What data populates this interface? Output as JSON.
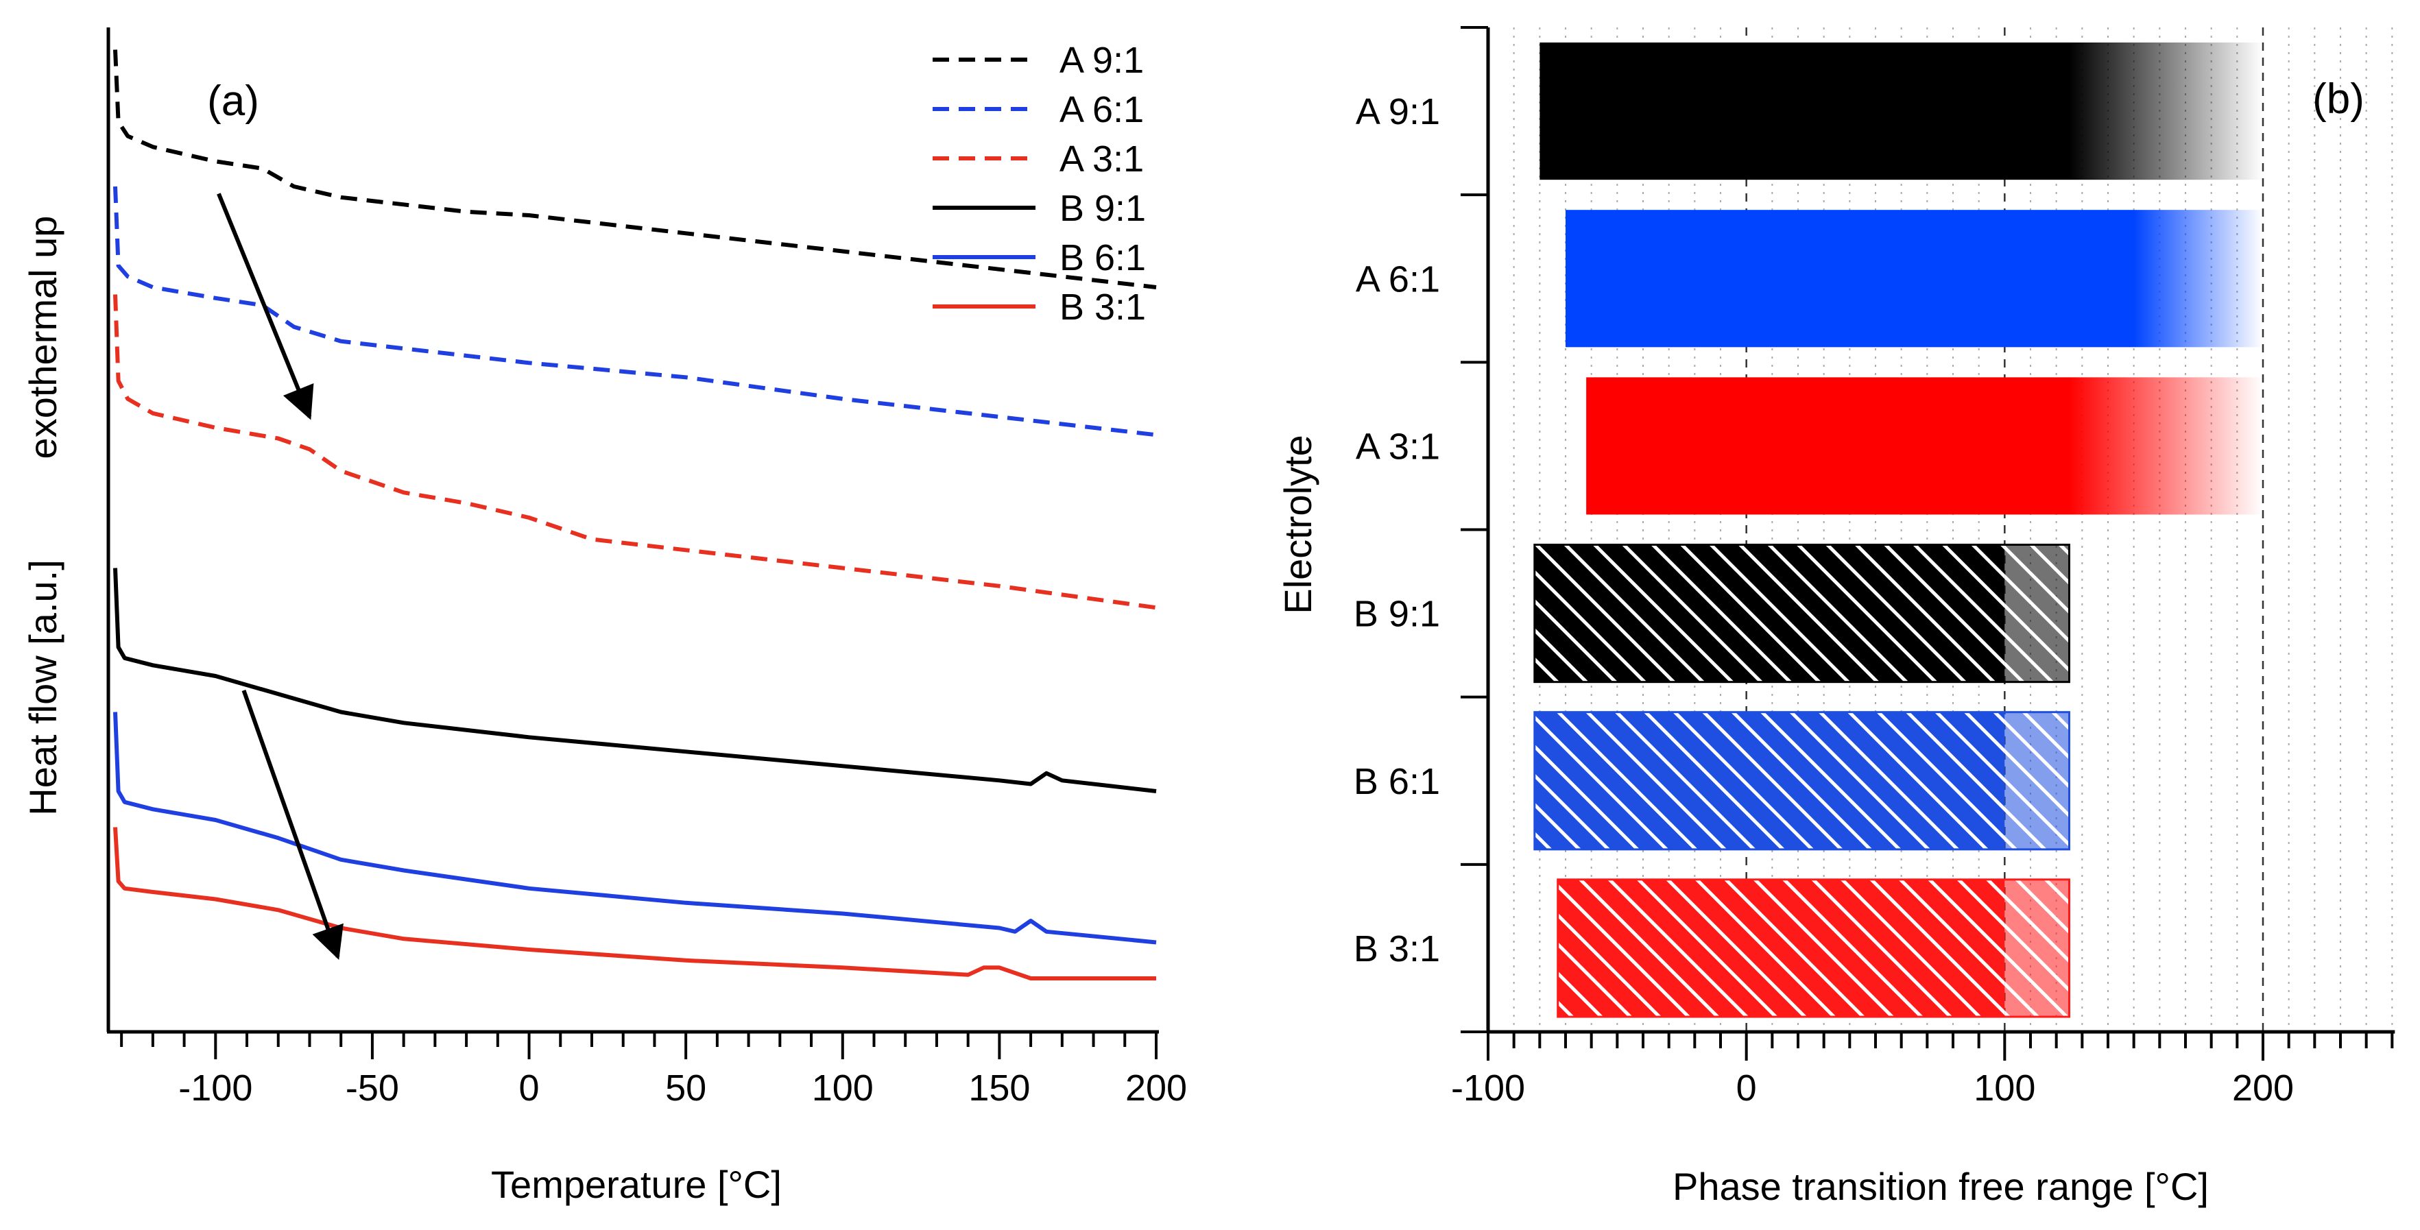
{
  "chart_data": [
    {
      "panel": "(a)",
      "type": "line",
      "xlabel": "Temperature [°C]",
      "ylabel_lines": [
        "Heat flow [a.u.]",
        "exothermal up"
      ],
      "xlim": [
        -135,
        200
      ],
      "xticks": [
        -100,
        -50,
        0,
        50,
        100,
        150,
        200
      ],
      "xtick_labels": [
        "-100",
        "-50",
        "0",
        "50",
        "100",
        "150",
        "200"
      ],
      "yaxis_ticks": false,
      "legend": {
        "position": "top-right"
      },
      "series": [
        {
          "name": "A 9:1",
          "color": "#000000",
          "style": "dashed",
          "x": [
            -132,
            -131,
            -128,
            -120,
            -100,
            -85,
            -75,
            -60,
            -40,
            -20,
            0,
            50,
            100,
            150,
            200
          ],
          "y": [
            0.93,
            0.83,
            0.81,
            0.795,
            0.775,
            0.765,
            0.74,
            0.725,
            0.715,
            0.705,
            0.7,
            0.675,
            0.65,
            0.625,
            0.6
          ]
        },
        {
          "name": "A 6:1",
          "color": "#1f3fe0",
          "style": "dashed",
          "x": [
            -132,
            -131,
            -128,
            -120,
            -100,
            -85,
            -75,
            -60,
            -40,
            -20,
            0,
            50,
            100,
            150,
            200
          ],
          "y": [
            0.74,
            0.63,
            0.615,
            0.6,
            0.585,
            0.575,
            0.545,
            0.525,
            0.515,
            0.505,
            0.495,
            0.475,
            0.445,
            0.42,
            0.395
          ]
        },
        {
          "name": "A 3:1",
          "color": "#e83020",
          "style": "dashed",
          "x": [
            -132,
            -131,
            -128,
            -120,
            -100,
            -80,
            -70,
            -60,
            -40,
            -20,
            0,
            20,
            50,
            100,
            150,
            200
          ],
          "y": [
            0.59,
            0.47,
            0.445,
            0.425,
            0.405,
            0.39,
            0.375,
            0.345,
            0.315,
            0.3,
            0.28,
            0.25,
            0.235,
            0.21,
            0.185,
            0.155
          ]
        },
        {
          "name": "B 9:1",
          "color": "#000000",
          "style": "solid",
          "x": [
            -132,
            -131,
            -129,
            -120,
            -100,
            -80,
            -60,
            -40,
            0,
            50,
            100,
            150,
            160,
            165,
            170,
            200
          ],
          "y": [
            0.21,
            0.1,
            0.085,
            0.075,
            0.06,
            0.035,
            0.01,
            -0.005,
            -0.025,
            -0.045,
            -0.065,
            -0.085,
            -0.09,
            -0.075,
            -0.085,
            -0.1
          ]
        },
        {
          "name": "B 6:1",
          "color": "#1f3fe0",
          "style": "solid",
          "x": [
            -132,
            -131,
            -129,
            -120,
            -100,
            -80,
            -60,
            -40,
            0,
            50,
            100,
            150,
            155,
            160,
            165,
            200
          ],
          "y": [
            0.01,
            -0.1,
            -0.115,
            -0.125,
            -0.14,
            -0.165,
            -0.195,
            -0.21,
            -0.235,
            -0.255,
            -0.27,
            -0.29,
            -0.295,
            -0.28,
            -0.295,
            -0.31
          ]
        },
        {
          "name": "B 3:1",
          "color": "#e83020",
          "style": "solid",
          "x": [
            -132,
            -131,
            -129,
            -120,
            -100,
            -80,
            -60,
            -40,
            0,
            50,
            100,
            140,
            145,
            150,
            160,
            200
          ],
          "y": [
            -0.15,
            -0.225,
            -0.235,
            -0.24,
            -0.25,
            -0.265,
            -0.29,
            -0.305,
            -0.32,
            -0.335,
            -0.345,
            -0.355,
            -0.345,
            -0.345,
            -0.36,
            -0.36
          ]
        }
      ],
      "annotations": [
        {
          "type": "arrow",
          "from": [
            -99,
            0.73
          ],
          "to": [
            -70,
            0.42
          ]
        },
        {
          "type": "arrow",
          "from": [
            -91,
            0.04
          ],
          "to": [
            -61,
            -0.33
          ]
        }
      ]
    },
    {
      "panel": "(b)",
      "type": "bar",
      "orientation": "horizontal",
      "xlabel": "Phase transition free range [°C]",
      "ylabel": "Electrolyte",
      "xlim": [
        -100,
        250
      ],
      "xticks": [
        -100,
        0,
        100,
        200
      ],
      "xtick_labels": [
        "-100",
        "0",
        "100",
        "200"
      ],
      "grid": "vertical dotted minor, dashed at 0, 100, 200",
      "categories": [
        "A 9:1",
        "A 6:1",
        "A 3:1",
        "B 9:1",
        "B 6:1",
        "B 3:1"
      ],
      "bars": [
        {
          "label": "A 9:1",
          "start": -80,
          "solid_end": 125,
          "fade_end": 200,
          "fill": "gradient-fade",
          "color": "#000000"
        },
        {
          "label": "A 6:1",
          "start": -70,
          "solid_end": 150,
          "fade_end": 200,
          "fill": "gradient-fade",
          "color": "#0044ff"
        },
        {
          "label": "A 3:1",
          "start": -62,
          "solid_end": 125,
          "fade_end": 200,
          "fill": "gradient-fade",
          "color": "#ff0000"
        },
        {
          "label": "B 9:1",
          "start": -82,
          "solid_end": 100,
          "fade_end": 125,
          "fill": "hatched",
          "color": "#000000"
        },
        {
          "label": "B 6:1",
          "start": -82,
          "solid_end": 100,
          "fade_end": 125,
          "fill": "hatched",
          "color": "#1f4fe0"
        },
        {
          "label": "B 3:1",
          "start": -73,
          "solid_end": 100,
          "fade_end": 125,
          "fill": "hatched",
          "color": "#ff1a1a"
        }
      ]
    }
  ]
}
